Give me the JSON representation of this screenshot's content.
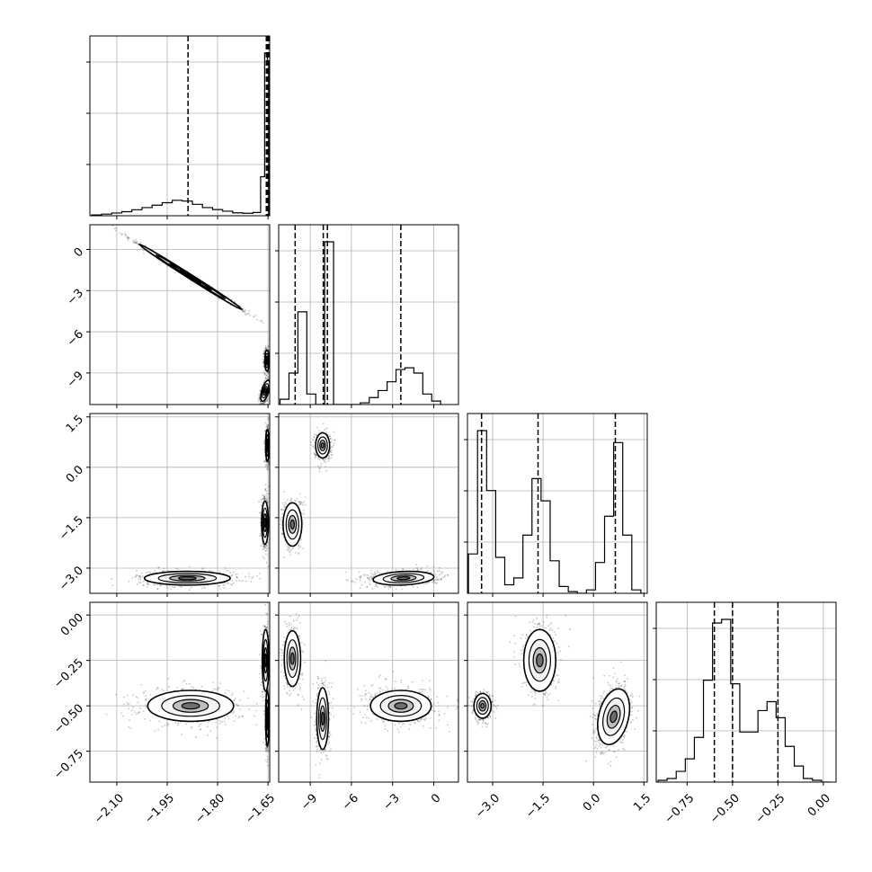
{
  "chart_data": {
    "type": "corner",
    "title": "",
    "grid": true,
    "parameters": [
      {
        "index": 0,
        "label": "",
        "range": [
          -2.18,
          -1.645
        ],
        "ticks": [
          -2.1,
          -1.95,
          -1.8,
          -1.65
        ],
        "tick_labels": [
          "−2.10",
          "−1.95",
          "−1.80",
          "−1.65"
        ]
      },
      {
        "index": 1,
        "label": "",
        "range": [
          -11.3,
          1.8
        ],
        "ticks": [
          -9,
          -6,
          -3,
          0
        ],
        "tick_labels": [
          "−9",
          "−6",
          "−3",
          "0"
        ]
      },
      {
        "index": 2,
        "label": "",
        "range": [
          -3.75,
          1.6
        ],
        "ticks": [
          -3.0,
          -1.5,
          0.0,
          1.5
        ],
        "tick_labels": [
          "−3.0",
          "−1.5",
          "0.0",
          "1.5"
        ]
      },
      {
        "index": 3,
        "label": "",
        "range": [
          -0.92,
          0.07
        ],
        "ticks": [
          -0.75,
          -0.5,
          -0.25,
          0.0
        ],
        "tick_labels": [
          "−0.75",
          "−0.50",
          "−0.25",
          "0.00"
        ]
      }
    ],
    "histograms": [
      {
        "parameter": 0,
        "bin_edges": [
          -2.175,
          -2.145,
          -2.115,
          -2.085,
          -2.055,
          -2.025,
          -1.995,
          -1.965,
          -1.935,
          -1.905,
          -1.875,
          -1.845,
          -1.815,
          -1.785,
          -1.755,
          -1.725,
          -1.695,
          -1.672,
          -1.66,
          -1.652,
          -1.648
        ],
        "counts": [
          0.005,
          0.01,
          0.017,
          0.025,
          0.037,
          0.05,
          0.065,
          0.08,
          0.095,
          0.09,
          0.07,
          0.05,
          0.038,
          0.028,
          0.018,
          0.015,
          0.02,
          0.24,
          1.0,
          0.95
        ],
        "quantile_lines": [
          -1.888,
          -1.655,
          -1.651,
          -1.648
        ]
      },
      {
        "parameter": 1,
        "bin_edges": [
          -11.2,
          -10.55,
          -9.9,
          -9.25,
          -8.6,
          -7.95,
          -7.3,
          -6.65,
          -6.0,
          -5.35,
          -4.7,
          -4.05,
          -3.4,
          -2.75,
          -2.1,
          -1.45,
          -0.8,
          -0.15,
          0.5
        ],
        "counts": [
          0.03,
          0.18,
          0.53,
          0.06,
          0.0,
          0.93,
          0.0,
          0.0,
          0.0,
          0.01,
          0.04,
          0.08,
          0.13,
          0.2,
          0.21,
          0.18,
          0.06,
          0.02
        ],
        "quantile_lines": [
          -10.1,
          -8.05,
          -7.75,
          -2.4
        ]
      },
      {
        "parameter": 2,
        "bin_edges": [
          -3.72,
          -3.45,
          -3.18,
          -2.91,
          -2.64,
          -2.37,
          -2.1,
          -1.83,
          -1.56,
          -1.29,
          -1.02,
          -0.75,
          -0.48,
          -0.21,
          0.06,
          0.33,
          0.6,
          0.87,
          1.14,
          1.41,
          1.55
        ],
        "counts": [
          0.23,
          0.95,
          0.6,
          0.21,
          0.05,
          0.09,
          0.34,
          0.67,
          0.54,
          0.19,
          0.04,
          0.01,
          0.0,
          0.02,
          0.18,
          0.45,
          0.88,
          0.34,
          0.02,
          0.0
        ],
        "quantile_lines": [
          -3.33,
          -1.65,
          0.65
        ]
      },
      {
        "parameter": 3,
        "bin_edges": [
          -0.91,
          -0.86,
          -0.81,
          -0.76,
          -0.71,
          -0.66,
          -0.61,
          -0.56,
          -0.51,
          -0.46,
          -0.41,
          -0.36,
          -0.31,
          -0.26,
          -0.21,
          -0.16,
          -0.11,
          -0.06,
          -0.01,
          0.04
        ],
        "counts": [
          0.01,
          0.02,
          0.06,
          0.13,
          0.25,
          0.57,
          0.89,
          0.91,
          0.55,
          0.28,
          0.28,
          0.4,
          0.45,
          0.36,
          0.2,
          0.09,
          0.02,
          0.01,
          0.0
        ],
        "quantile_lines": [
          -0.6,
          -0.5,
          -0.25
        ]
      }
    ],
    "pairs": [
      {
        "x": 0,
        "y": 1,
        "clusters": [
          {
            "center": [
              -1.88,
              -2.0
            ],
            "sd": [
              0.09,
              1.4
            ],
            "corr": -0.997,
            "weight": 0.42
          },
          {
            "center": [
              -1.653,
              -8.1
            ],
            "sd": [
              0.004,
              0.45
            ],
            "corr": 0.0,
            "weight": 0.3
          },
          {
            "center": [
              -1.658,
              -10.3
            ],
            "sd": [
              0.008,
              0.45
            ],
            "corr": 0.6,
            "weight": 0.28
          }
        ]
      },
      {
        "x": 0,
        "y": 2,
        "clusters": [
          {
            "center": [
              -1.89,
              -3.3
            ],
            "sd": [
              0.075,
              0.12
            ],
            "corr": 0.0,
            "weight": 0.42
          },
          {
            "center": [
              -1.652,
              0.65
            ],
            "sd": [
              0.003,
              0.28
            ],
            "corr": 0.0,
            "weight": 0.3
          },
          {
            "center": [
              -1.659,
              -1.65
            ],
            "sd": [
              0.006,
              0.38
            ],
            "corr": 0.0,
            "weight": 0.28
          }
        ]
      },
      {
        "x": 0,
        "y": 3,
        "clusters": [
          {
            "center": [
              -1.88,
              -0.5
            ],
            "sd": [
              0.075,
              0.05
            ],
            "corr": 0.0,
            "weight": 0.42
          },
          {
            "center": [
              -1.652,
              -0.57
            ],
            "sd": [
              0.003,
              0.09
            ],
            "corr": 0.0,
            "weight": 0.3
          },
          {
            "center": [
              -1.657,
              -0.25
            ],
            "sd": [
              0.006,
              0.1
            ],
            "corr": 0.0,
            "weight": 0.28
          }
        ]
      },
      {
        "x": 1,
        "y": 2,
        "clusters": [
          {
            "center": [
              -2.2,
              -3.3
            ],
            "sd": [
              1.3,
              0.12
            ],
            "corr": 0.2,
            "weight": 0.42
          },
          {
            "center": [
              -8.1,
              0.65
            ],
            "sd": [
              0.3,
              0.22
            ],
            "corr": 0.0,
            "weight": 0.3
          },
          {
            "center": [
              -10.3,
              -1.7
            ],
            "sd": [
              0.4,
              0.38
            ],
            "corr": 0.0,
            "weight": 0.28
          }
        ]
      },
      {
        "x": 1,
        "y": 3,
        "clusters": [
          {
            "center": [
              -2.4,
              -0.5
            ],
            "sd": [
              1.3,
              0.05
            ],
            "corr": 0.0,
            "weight": 0.42
          },
          {
            "center": [
              -8.1,
              -0.57
            ],
            "sd": [
              0.25,
              0.1
            ],
            "corr": 0.0,
            "weight": 0.3
          },
          {
            "center": [
              -10.3,
              -0.24
            ],
            "sd": [
              0.35,
              0.09
            ],
            "corr": 0.0,
            "weight": 0.28
          }
        ]
      },
      {
        "x": 2,
        "y": 3,
        "clusters": [
          {
            "center": [
              -3.3,
              -0.5
            ],
            "sd": [
              0.15,
              0.04
            ],
            "corr": 0.0,
            "weight": 0.3
          },
          {
            "center": [
              -1.6,
              -0.25
            ],
            "sd": [
              0.28,
              0.1
            ],
            "corr": 0.0,
            "weight": 0.28
          },
          {
            "center": [
              0.6,
              -0.56
            ],
            "sd": [
              0.28,
              0.09
            ],
            "corr": 0.3,
            "weight": 0.42
          }
        ]
      }
    ]
  }
}
